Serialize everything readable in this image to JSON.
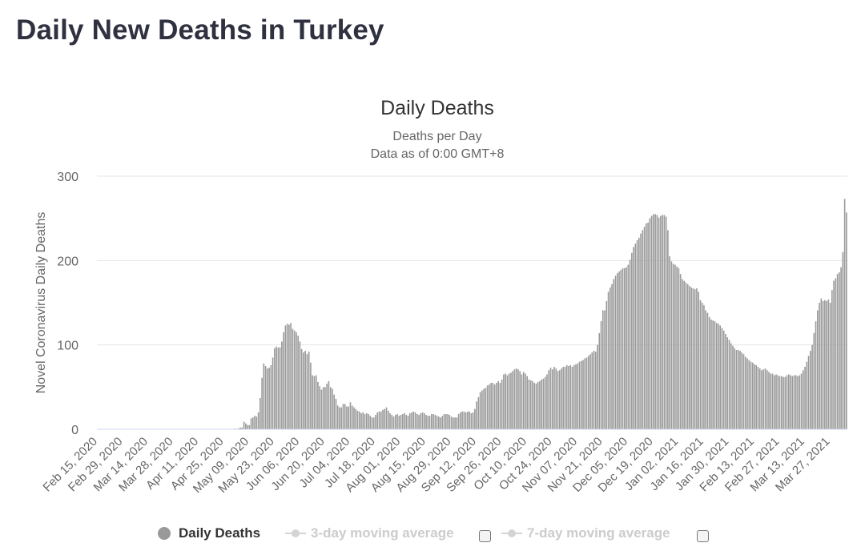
{
  "page": {
    "title": "Daily New Deaths in Turkey"
  },
  "chart_data": {
    "type": "bar",
    "title": "Daily Deaths",
    "subtitle_lines": [
      "Deaths per Day",
      "Data as of 0:00 GMT+8"
    ],
    "ylabel": "Novel Coronavirus Daily Deaths",
    "ylim": [
      0,
      300
    ],
    "yticks": [
      0,
      100,
      200,
      300
    ],
    "grid": true,
    "x_start": "Feb 15, 2020",
    "x_end": "Apr 06, 2021",
    "xtick_labels": [
      "Feb 15, 2020",
      "Feb 29, 2020",
      "Mar 14, 2020",
      "Mar 28, 2020",
      "Apr 11, 2020",
      "Apr 25, 2020",
      "May 09, 2020",
      "May 23, 2020",
      "Jun 06, 2020",
      "Jun 20, 2020",
      "Jul 04, 2020",
      "Jul 18, 2020",
      "Aug 01, 2020",
      "Aug 15, 2020",
      "Aug 29, 2020",
      "Sep 12, 2020",
      "Sep 26, 2020",
      "Oct 10, 2020",
      "Oct 24, 2020",
      "Nov 07, 2020",
      "Nov 21, 2020",
      "Dec 05, 2020",
      "Dec 19, 2020",
      "Jan 02, 2021",
      "Jan 16, 2021",
      "Jan 30, 2021",
      "Feb 13, 2021",
      "Feb 27, 2021",
      "Mar 13, 2021",
      "Mar 27, 2021"
    ],
    "series": [
      {
        "name": "Daily Deaths",
        "color": "#999999",
        "values": [
          0,
          0,
          0,
          0,
          0,
          0,
          0,
          0,
          0,
          0,
          0,
          0,
          0,
          0,
          0,
          0,
          0,
          0,
          0,
          0,
          0,
          0,
          0,
          0,
          0,
          0,
          0,
          0,
          0,
          0,
          0,
          0,
          0,
          0,
          0,
          0,
          0,
          0,
          0,
          0,
          0,
          0,
          0,
          0,
          0,
          0,
          0,
          0,
          0,
          0,
          0,
          0,
          0,
          0,
          0,
          0,
          0,
          0,
          0,
          0,
          0,
          0,
          0,
          0,
          0,
          0,
          0,
          0,
          0,
          0,
          0,
          0,
          0,
          0,
          0,
          0,
          1,
          0,
          1,
          2,
          2,
          9,
          7,
          5,
          5,
          13,
          14,
          16,
          15,
          20,
          37,
          61,
          78,
          75,
          72,
          73,
          76,
          85,
          96,
          98,
          97,
          97,
          104,
          115,
          123,
          125,
          124,
          126,
          119,
          117,
          115,
          111,
          104,
          95,
          91,
          93,
          89,
          92,
          79,
          64,
          63,
          64,
          56,
          51,
          47,
          50,
          50,
          54,
          57,
          50,
          48,
          41,
          36,
          28,
          26,
          26,
          30,
          30,
          27,
          27,
          32,
          28,
          26,
          24,
          22,
          21,
          19,
          20,
          18,
          19,
          18,
          16,
          14,
          14,
          17,
          20,
          21,
          21,
          23,
          24,
          26,
          22,
          19,
          17,
          15,
          17,
          18,
          16,
          17,
          18,
          19,
          17,
          16,
          19,
          20,
          21,
          20,
          18,
          17,
          19,
          20,
          19,
          17,
          16,
          16,
          18,
          18,
          17,
          16,
          15,
          14,
          16,
          18,
          18,
          18,
          17,
          15,
          14,
          14,
          14,
          18,
          20,
          21,
          21,
          20,
          21,
          21,
          19,
          20,
          24,
          33,
          38,
          44,
          46,
          48,
          49,
          52,
          53,
          55,
          55,
          53,
          55,
          57,
          55,
          59,
          65,
          66,
          64,
          66,
          67,
          69,
          71,
          72,
          71,
          69,
          65,
          68,
          66,
          63,
          59,
          58,
          57,
          55,
          54,
          56,
          57,
          59,
          60,
          62,
          65,
          70,
          73,
          71,
          74,
          72,
          69,
          70,
          72,
          74,
          74,
          76,
          75,
          76,
          74,
          76,
          77,
          78,
          80,
          81,
          82,
          84,
          85,
          87,
          89,
          91,
          93,
          92,
          100,
          114,
          128,
          141,
          141,
          152,
          163,
          168,
          172,
          178,
          182,
          185,
          187,
          189,
          191,
          191,
          192,
          195,
          201,
          209,
          216,
          220,
          224,
          227,
          232,
          236,
          240,
          244,
          245,
          250,
          253,
          255,
          255,
          254,
          251,
          253,
          254,
          254,
          252,
          236,
          205,
          199,
          196,
          195,
          193,
          191,
          184,
          178,
          176,
          174,
          172,
          170,
          168,
          167,
          166,
          167,
          163,
          153,
          150,
          147,
          141,
          138,
          133,
          130,
          129,
          128,
          126,
          125,
          123,
          120,
          117,
          113,
          109,
          106,
          102,
          99,
          96,
          94,
          94,
          93,
          91,
          89,
          86,
          84,
          82,
          80,
          79,
          77,
          76,
          74,
          72,
          70,
          71,
          72,
          70,
          68,
          66,
          66,
          64,
          65,
          64,
          63,
          63,
          62,
          62,
          64,
          65,
          64,
          63,
          64,
          64,
          63,
          64,
          66,
          70,
          74,
          80,
          87,
          93,
          100,
          114,
          128,
          141,
          150,
          155,
          152,
          153,
          152,
          154,
          150,
          165,
          176,
          179,
          184,
          186,
          192,
          210,
          273,
          257
        ]
      }
    ]
  },
  "legend": {
    "daily_deaths": "Daily Deaths",
    "ma3": "3-day moving average",
    "ma7": "7-day moving average"
  },
  "colors": {
    "bar": "#999999",
    "grid": "#e6e6e6",
    "axis_text": "#666666",
    "title_text": "#2f3140",
    "legend_inactive": "#cccccc"
  }
}
